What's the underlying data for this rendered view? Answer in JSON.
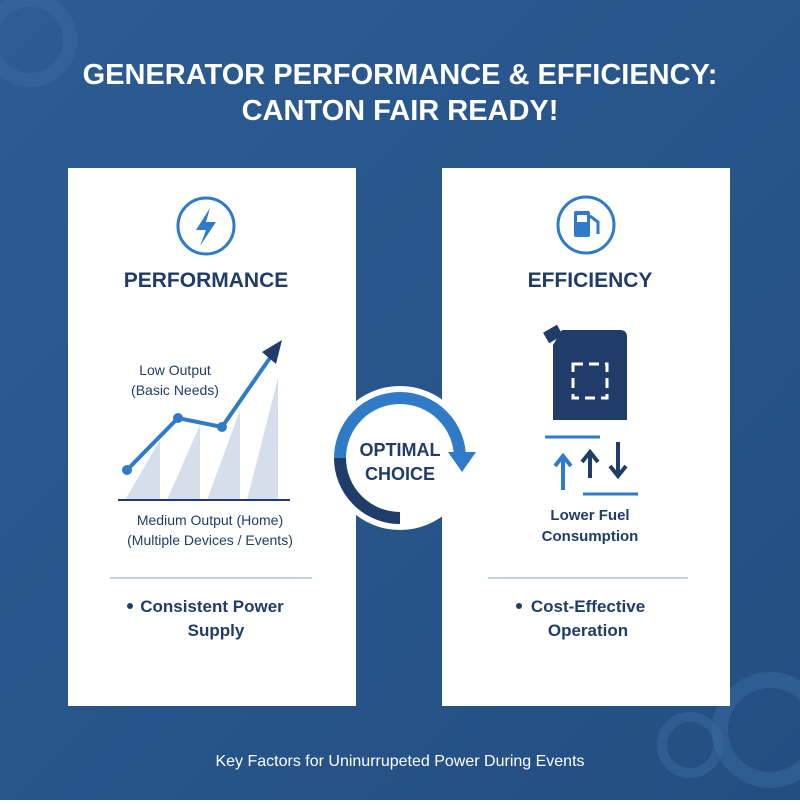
{
  "title": {
    "line1": "GENERATOR PERFORMANCE & EFFICIENCY:",
    "line2": "CANTON FAIR READY!"
  },
  "performance": {
    "heading": "PERFORMANCE",
    "low_label": [
      "Low Output",
      "(Basic Needs)"
    ],
    "medium_label": [
      "Medium Output (Home)",
      "(Multiple Devices / Events)"
    ],
    "bullet": [
      "Consistent Power",
      "Supply"
    ]
  },
  "center": {
    "lines": [
      "OPTIMAL",
      "CHOICE"
    ]
  },
  "efficiency": {
    "heading": "EFFICIENCY",
    "fuel_label": [
      "Lower Fuel",
      "Consumption"
    ],
    "bullet": [
      "Cost-Effective",
      "Operation"
    ]
  },
  "footer": "Key Factors for Uninurrupeted Power During Events"
}
